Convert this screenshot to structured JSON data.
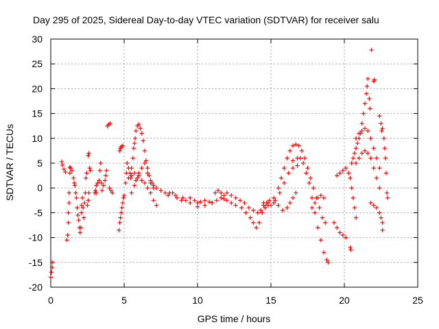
{
  "chart_data": {
    "type": "scatter",
    "title": "Day 295 of 2025, Sidereal Day-to-day VTEC variation (SDTVAR) for receiver salu",
    "xlabel": "GPS time / hours",
    "ylabel": "SDTVAR / TECUs",
    "xlim": [
      0,
      25
    ],
    "ylim": [
      -20,
      30
    ],
    "xticks": [
      0,
      5,
      10,
      15,
      20,
      25
    ],
    "yticks": [
      -20,
      -15,
      -10,
      -5,
      0,
      5,
      10,
      15,
      20,
      25,
      30
    ],
    "grid": true,
    "marker": "+",
    "color": "#ff0000",
    "series": [
      {
        "name": "SDTVAR",
        "points": [
          [
            0.0,
            -18
          ],
          [
            0.05,
            -17
          ],
          [
            0.1,
            -16
          ],
          [
            0.1,
            -15
          ],
          [
            0.75,
            5.3
          ],
          [
            0.8,
            4.6
          ],
          [
            0.9,
            3.8
          ],
          [
            1.0,
            3.2
          ],
          [
            1.1,
            -10.5
          ],
          [
            1.15,
            -9.5
          ],
          [
            1.2,
            -7
          ],
          [
            1.2,
            -5
          ],
          [
            1.25,
            -3
          ],
          [
            1.25,
            -1
          ],
          [
            1.3,
            3
          ],
          [
            1.3,
            4.2
          ],
          [
            1.35,
            4
          ],
          [
            1.45,
            3.5
          ],
          [
            1.55,
            2
          ],
          [
            1.6,
            1
          ],
          [
            1.65,
            0.5
          ],
          [
            1.7,
            -1
          ],
          [
            1.75,
            -2
          ],
          [
            1.8,
            -4
          ],
          [
            1.85,
            -5.5
          ],
          [
            1.9,
            -6.5
          ],
          [
            1.95,
            -8
          ],
          [
            2.0,
            -9
          ],
          [
            2.05,
            -8
          ],
          [
            2.1,
            -5
          ],
          [
            2.1,
            -3.5
          ],
          [
            2.15,
            -2
          ],
          [
            2.2,
            -4
          ],
          [
            2.25,
            -6
          ],
          [
            2.3,
            -3
          ],
          [
            2.35,
            -1
          ],
          [
            2.4,
            2
          ],
          [
            2.45,
            3
          ],
          [
            2.55,
            6.5
          ],
          [
            2.6,
            7
          ],
          [
            2.65,
            4
          ],
          [
            2.7,
            3.5
          ],
          [
            2.6,
            -1
          ],
          [
            2.55,
            -2.5
          ],
          [
            2.5,
            -3.5
          ],
          [
            3.0,
            -1
          ],
          [
            3.05,
            -0.5
          ],
          [
            3.1,
            -1
          ],
          [
            3.1,
            0.5
          ],
          [
            3.2,
            1
          ],
          [
            3.3,
            1.5
          ],
          [
            3.35,
            3.5
          ],
          [
            3.4,
            5
          ],
          [
            3.45,
            1
          ],
          [
            3.5,
            -0.5
          ],
          [
            3.6,
            0.5
          ],
          [
            3.7,
            1.5
          ],
          [
            3.75,
            2.5
          ],
          [
            3.8,
            3.5
          ],
          [
            3.85,
            12.5
          ],
          [
            3.95,
            12.8
          ],
          [
            4.05,
            13.0
          ],
          [
            4.0,
            0
          ],
          [
            4.1,
            -0.5
          ],
          [
            4.2,
            -1
          ],
          [
            4.65,
            -8.5
          ],
          [
            4.7,
            -7
          ],
          [
            4.75,
            -6
          ],
          [
            4.8,
            -5
          ],
          [
            4.85,
            -4
          ],
          [
            4.9,
            -3
          ],
          [
            4.95,
            -2
          ],
          [
            5.0,
            -1.5
          ],
          [
            4.7,
            7.5
          ],
          [
            4.75,
            8
          ],
          [
            4.8,
            8.3
          ],
          [
            4.9,
            8.5
          ],
          [
            5.1,
            1
          ],
          [
            5.15,
            3
          ],
          [
            5.2,
            5
          ],
          [
            5.3,
            4
          ],
          [
            5.4,
            3
          ],
          [
            5.45,
            2
          ],
          [
            5.5,
            4
          ],
          [
            5.6,
            6
          ],
          [
            5.65,
            8
          ],
          [
            5.7,
            9
          ],
          [
            5.75,
            10
          ],
          [
            5.8,
            11.5
          ],
          [
            5.9,
            12.5
          ],
          [
            6.0,
            12.8
          ],
          [
            6.1,
            12
          ],
          [
            6.2,
            11
          ],
          [
            6.3,
            9.5
          ],
          [
            6.4,
            7.5
          ],
          [
            6.5,
            5.5
          ],
          [
            6.6,
            4
          ],
          [
            6.7,
            2.5
          ],
          [
            6.8,
            1.5
          ],
          [
            6.9,
            1
          ],
          [
            7.0,
            0.5
          ],
          [
            7.2,
            0
          ],
          [
            7.5,
            -0.5
          ],
          [
            7.8,
            -1
          ],
          [
            8.1,
            -1
          ],
          [
            5.3,
            2
          ],
          [
            5.5,
            2.5
          ],
          [
            5.7,
            3
          ],
          [
            5.8,
            1.5
          ],
          [
            5.9,
            2
          ],
          [
            6.0,
            2.5
          ],
          [
            6.2,
            1.5
          ],
          [
            6.4,
            1
          ],
          [
            6.6,
            0
          ],
          [
            6.8,
            -1
          ],
          [
            7.0,
            -2.5
          ],
          [
            7.2,
            -3.5
          ],
          [
            5.5,
            -1
          ],
          [
            5.7,
            0.5
          ],
          [
            6.0,
            3
          ],
          [
            6.2,
            4
          ],
          [
            6.4,
            5
          ],
          [
            6.6,
            3
          ],
          [
            6.8,
            1
          ],
          [
            7.0,
            0
          ],
          [
            8.0,
            -1.5
          ],
          [
            8.3,
            -1
          ],
          [
            8.6,
            -2
          ],
          [
            8.9,
            -2.5
          ],
          [
            9.2,
            -2.5
          ],
          [
            9.5,
            -2
          ],
          [
            9.8,
            -2.5
          ],
          [
            10.0,
            -3
          ],
          [
            10.2,
            -2.8
          ],
          [
            10.5,
            -2.5
          ],
          [
            10.8,
            -2.8
          ],
          [
            11.0,
            -3
          ],
          [
            11.3,
            -2.5
          ],
          [
            11.6,
            -2
          ],
          [
            11.8,
            -2.2
          ],
          [
            12.0,
            -2.5
          ],
          [
            12.3,
            -3
          ],
          [
            12.6,
            -3.5
          ],
          [
            13.0,
            -4
          ],
          [
            13.3,
            -5
          ],
          [
            13.6,
            -6
          ],
          [
            13.8,
            -7
          ],
          [
            14.0,
            -8
          ],
          [
            14.2,
            -7
          ],
          [
            14.4,
            -5
          ],
          [
            14.6,
            -4
          ],
          [
            14.8,
            -3
          ],
          [
            8.5,
            -1.5
          ],
          [
            9.0,
            -2
          ],
          [
            9.5,
            -3
          ],
          [
            10.0,
            -3.8
          ],
          [
            10.5,
            -3.5
          ],
          [
            11.0,
            -3
          ],
          [
            11.2,
            -1
          ],
          [
            11.4,
            -0.5
          ],
          [
            11.6,
            -1
          ],
          [
            11.8,
            -1.5
          ],
          [
            12.0,
            -1
          ],
          [
            12.3,
            -1.5
          ],
          [
            12.6,
            -2
          ],
          [
            12.9,
            -2.5
          ],
          [
            13.2,
            -3
          ],
          [
            13.5,
            -4
          ],
          [
            13.8,
            -4.5
          ],
          [
            14.1,
            -5
          ],
          [
            14.3,
            -4.5
          ],
          [
            14.5,
            -3.5
          ],
          [
            14.7,
            -3
          ],
          [
            14.9,
            -2.5
          ],
          [
            15.2,
            -3
          ],
          [
            15.5,
            -3.5
          ],
          [
            15.8,
            -4.5
          ],
          [
            16.1,
            -4
          ],
          [
            16.3,
            -3
          ],
          [
            16.5,
            -2
          ],
          [
            16.7,
            -1
          ],
          [
            14.5,
            -3
          ],
          [
            14.8,
            -3.5
          ],
          [
            15.0,
            -3.5
          ],
          [
            15.3,
            -2.5
          ],
          [
            15.6,
            -1
          ],
          [
            15.9,
            1
          ],
          [
            16.2,
            3
          ],
          [
            16.5,
            4
          ],
          [
            16.8,
            4.5
          ],
          [
            15.2,
            -2
          ],
          [
            15.5,
            0
          ],
          [
            15.7,
            2
          ],
          [
            15.9,
            4
          ],
          [
            16.1,
            6
          ],
          [
            16.3,
            7.5
          ],
          [
            16.5,
            8.5
          ],
          [
            16.7,
            8.8
          ],
          [
            16.9,
            8.5
          ],
          [
            17.1,
            7.5
          ],
          [
            17.3,
            6
          ],
          [
            17.5,
            4
          ],
          [
            17.7,
            2
          ],
          [
            17.9,
            0
          ],
          [
            18.1,
            -2
          ],
          [
            18.3,
            -4
          ],
          [
            18.5,
            -6
          ],
          [
            18.7,
            -7
          ],
          [
            16.5,
            5.5
          ],
          [
            16.8,
            6
          ],
          [
            17.0,
            6
          ],
          [
            17.2,
            5
          ],
          [
            17.4,
            3
          ],
          [
            17.6,
            1
          ],
          [
            17.8,
            -2
          ],
          [
            18.0,
            -5
          ],
          [
            18.2,
            -8
          ],
          [
            18.4,
            -10.5
          ],
          [
            18.6,
            -13
          ],
          [
            18.8,
            -14.5
          ],
          [
            18.9,
            -15
          ],
          [
            17.8,
            -4
          ],
          [
            18.0,
            -3
          ],
          [
            18.2,
            -2
          ],
          [
            18.4,
            -1.5
          ],
          [
            18.6,
            -2
          ],
          [
            19.3,
            -7
          ],
          [
            19.5,
            -8
          ],
          [
            19.7,
            -9
          ],
          [
            19.9,
            -9.5
          ],
          [
            20.1,
            -10
          ],
          [
            20.4,
            -12
          ],
          [
            20.45,
            -12.5
          ],
          [
            19.5,
            2.5
          ],
          [
            19.7,
            3
          ],
          [
            19.9,
            3.5
          ],
          [
            20.1,
            4
          ],
          [
            20.3,
            3
          ],
          [
            20.4,
            2
          ],
          [
            20.5,
            0
          ],
          [
            20.6,
            -2
          ],
          [
            20.7,
            -4
          ],
          [
            20.8,
            -6
          ],
          [
            20.5,
            5
          ],
          [
            20.6,
            6
          ],
          [
            20.7,
            7
          ],
          [
            20.8,
            8
          ],
          [
            20.9,
            9
          ],
          [
            21.0,
            10
          ],
          [
            21.1,
            11
          ],
          [
            21.2,
            13
          ],
          [
            21.3,
            15
          ],
          [
            21.4,
            17
          ],
          [
            21.5,
            19
          ],
          [
            21.55,
            20.5
          ],
          [
            21.6,
            22
          ],
          [
            21.7,
            18
          ],
          [
            21.75,
            16
          ],
          [
            20.8,
            5
          ],
          [
            21.0,
            6
          ],
          [
            21.2,
            7
          ],
          [
            21.4,
            7.5
          ],
          [
            21.6,
            7
          ],
          [
            21.8,
            6
          ],
          [
            22.0,
            4
          ],
          [
            22.2,
            2
          ],
          [
            22.4,
            0
          ],
          [
            20.8,
            10
          ],
          [
            21.0,
            11
          ],
          [
            21.2,
            11.5
          ],
          [
            21.4,
            12
          ],
          [
            21.6,
            11.5
          ],
          [
            21.8,
            10
          ],
          [
            22.0,
            8
          ],
          [
            22.2,
            6
          ],
          [
            22.4,
            4
          ],
          [
            21.8,
            -3
          ],
          [
            22.0,
            -3.5
          ],
          [
            22.2,
            -4
          ],
          [
            22.4,
            -5
          ],
          [
            22.5,
            -6
          ],
          [
            22.6,
            -7
          ],
          [
            22.6,
            -8.5
          ],
          [
            22.0,
            21.5
          ],
          [
            22.05,
            21.8
          ],
          [
            22.4,
            14.5
          ],
          [
            22.5,
            13
          ],
          [
            22.55,
            11.5
          ],
          [
            22.6,
            12
          ],
          [
            22.7,
            10
          ],
          [
            22.75,
            8
          ],
          [
            22.8,
            6
          ],
          [
            22.85,
            3
          ],
          [
            22.9,
            -1
          ],
          [
            22.95,
            -2
          ],
          [
            21.85,
            27.8
          ]
        ]
      }
    ]
  }
}
